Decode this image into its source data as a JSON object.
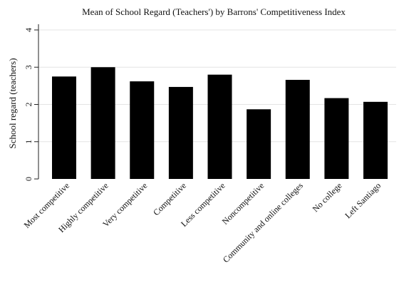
{
  "chart_data": {
    "type": "bar",
    "title": "Mean of School Regard (Teachers') by Barrons' Competitiveness Index",
    "xlabel": "",
    "ylabel": "School regard (teachers)",
    "ylim": [
      0,
      4
    ],
    "yticks": [
      "0",
      "1",
      "2",
      "3",
      "4"
    ],
    "grid": true,
    "legend": "none",
    "bar_color": "#000000",
    "categories": [
      "Most competitive",
      "Highly competitive",
      "Very competitive",
      "Competitive",
      "Less competitive",
      "Noncompetitive",
      "Community and online colleges",
      "No college",
      "Left Santiago"
    ],
    "values": [
      2.75,
      3.0,
      2.62,
      2.47,
      2.8,
      1.87,
      2.66,
      2.17,
      2.07
    ]
  }
}
